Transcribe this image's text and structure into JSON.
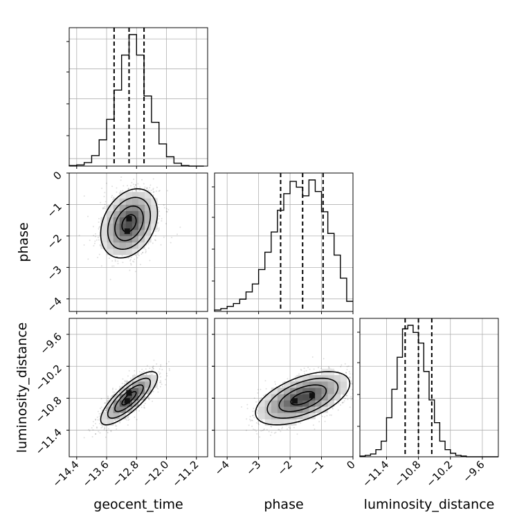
{
  "chart_data": {
    "type": "corner",
    "parameters": [
      "geocent_time",
      "phase",
      "luminosity_distance"
    ],
    "axis_labels": {
      "geocent_time": "geocent_time",
      "phase": "phase",
      "luminosity_distance": "luminosity_distance"
    },
    "ranges": {
      "geocent_time": [
        -14.6,
        -10.9
      ],
      "phase": [
        -4.4,
        0.0
      ],
      "luminosity_distance": [
        -11.9,
        -9.3
      ]
    },
    "ticks": {
      "geocent_time": [
        -14.4,
        -13.6,
        -12.8,
        -12.0,
        -11.2
      ],
      "phase": [
        -4,
        -3,
        -2,
        -1,
        0
      ],
      "luminosity_distance": [
        -11.4,
        -10.8,
        -10.2,
        -9.6
      ]
    },
    "tick_labels": {
      "geocent_time": [
        "−14.4",
        "−13.6",
        "−12.8",
        "−12.0",
        "−11.2"
      ],
      "phase": [
        "−4",
        "−3",
        "−2",
        "−1",
        "0"
      ],
      "luminosity_distance": [
        "−11.4",
        "−10.8",
        "−10.2",
        "−9.6"
      ]
    },
    "quantiles": {
      "geocent_time": [
        -13.4,
        -13.0,
        -12.6
      ],
      "phase": [
        -2.3,
        -1.6,
        -0.95
      ],
      "luminosity_distance": [
        -11.05,
        -10.8,
        -10.55
      ]
    },
    "histograms": {
      "geocent_time": {
        "bin_edges": [
          -14.6,
          -14.4,
          -14.2,
          -14.0,
          -13.8,
          -13.6,
          -13.4,
          -13.2,
          -13.0,
          -12.8,
          -12.6,
          -12.4,
          -12.2,
          -12.0,
          -11.8,
          -11.6,
          -11.4,
          -11.2,
          -11.0
        ],
        "counts": [
          1,
          2,
          6,
          18,
          45,
          80,
          130,
          190,
          225,
          190,
          120,
          75,
          38,
          16,
          5,
          1,
          0,
          0
        ]
      },
      "phase": {
        "bin_edges": [
          -4.4,
          -4.2,
          -4.0,
          -3.8,
          -3.6,
          -3.4,
          -3.2,
          -3.0,
          -2.8,
          -2.6,
          -2.4,
          -2.2,
          -2.0,
          -1.8,
          -1.6,
          -1.4,
          -1.2,
          -1.0,
          -0.8,
          -0.6,
          -0.4,
          -0.2,
          0.0
        ],
        "counts": [
          2,
          4,
          7,
          11,
          17,
          27,
          38,
          58,
          82,
          110,
          140,
          163,
          180,
          172,
          160,
          182,
          166,
          138,
          108,
          78,
          46,
          14
        ]
      },
      "luminosity_distance": {
        "bin_edges": [
          -11.9,
          -11.8,
          -11.7,
          -11.6,
          -11.5,
          -11.4,
          -11.3,
          -11.2,
          -11.1,
          -11.0,
          -10.9,
          -10.8,
          -10.7,
          -10.6,
          -10.5,
          -10.4,
          -10.3,
          -10.2,
          -10.1,
          -10.0,
          -9.9,
          -9.8,
          -9.7,
          -9.6,
          -9.5,
          -9.4,
          -9.3
        ],
        "counts": [
          1,
          2,
          4,
          10,
          22,
          55,
          95,
          140,
          180,
          185,
          175,
          160,
          120,
          80,
          48,
          22,
          10,
          5,
          2,
          1,
          0,
          0,
          0,
          0,
          0,
          0
        ]
      }
    },
    "joint": [
      {
        "x": "geocent_time",
        "y": "phase",
        "center": [
          -13.0,
          -1.6
        ],
        "sd": [
          0.38,
          0.55
        ],
        "rho": 0.3,
        "peaks": [
          [
            -13.0,
            -1.45
          ],
          [
            -13.05,
            -1.85
          ]
        ]
      },
      {
        "x": "geocent_time",
        "y": "luminosity_distance",
        "center": [
          -13.0,
          -10.8
        ],
        "sd": [
          0.38,
          0.25
        ],
        "rho": 0.8,
        "peaks": [
          [
            -13.0,
            -10.7
          ],
          [
            -13.05,
            -10.85
          ]
        ]
      },
      {
        "x": "phase",
        "y": "luminosity_distance",
        "center": [
          -1.6,
          -10.8
        ],
        "sd": [
          0.75,
          0.25
        ],
        "rho": 0.55,
        "peaks": [
          [
            -1.85,
            -10.85
          ],
          [
            -1.3,
            -10.75
          ]
        ]
      }
    ],
    "contour_levels_sigma": [
      0.5,
      1.0,
      1.5,
      2.0
    ],
    "grid": true,
    "legend": "none"
  }
}
